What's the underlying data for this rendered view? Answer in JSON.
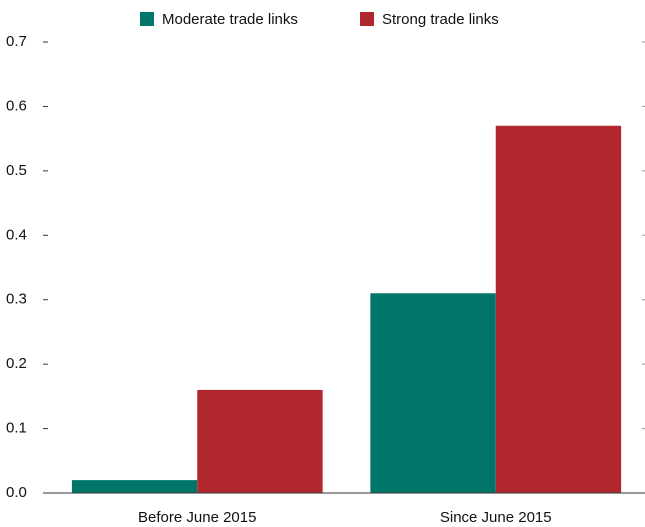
{
  "chart_data": {
    "type": "bar",
    "categories": [
      "Before June 2015",
      "Since June 2015"
    ],
    "series": [
      {
        "name": "Moderate trade links",
        "color": "#00766a",
        "values": [
          0.02,
          0.31
        ]
      },
      {
        "name": "Strong trade links",
        "color": "#b0282e",
        "values": [
          0.16,
          0.57
        ]
      }
    ],
    "ylim": [
      0,
      0.7
    ],
    "yticks": [
      {
        "value": 0,
        "label": "0.0"
      },
      0.1,
      0.2,
      0.3,
      0.4,
      0.5,
      0.6,
      0.7
    ],
    "legend": "top"
  }
}
